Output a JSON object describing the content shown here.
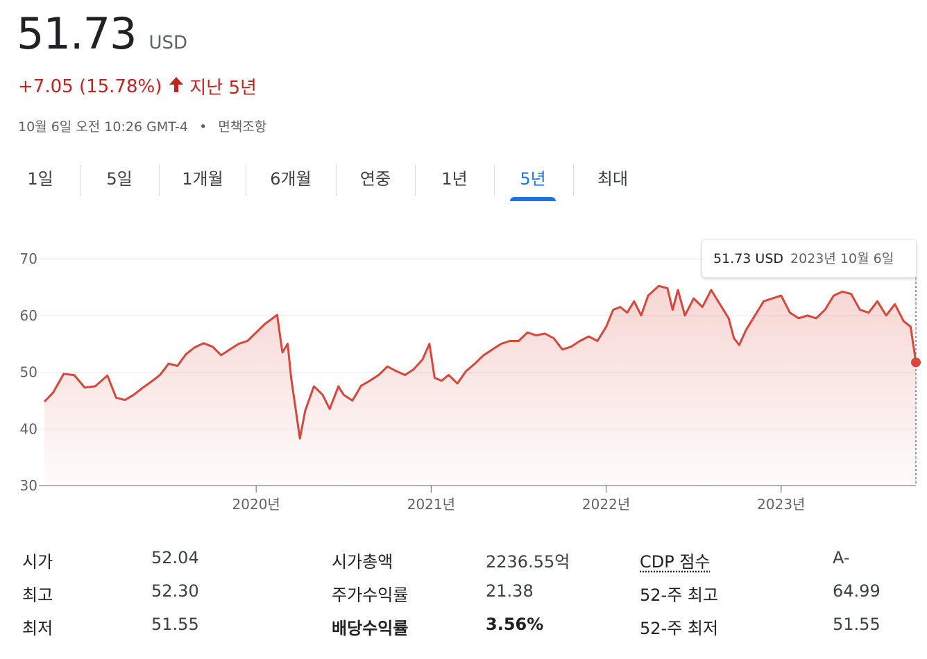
{
  "header": {
    "price": "51.73",
    "currency": "USD",
    "change": "+7.05 (15.78%)",
    "change_period": "지난 5년",
    "timestamp": "10월 6일 오전 10:26 GMT-4",
    "disclaimer": "면책조항",
    "change_color": "#c5221f"
  },
  "tabs": [
    {
      "label": "1일"
    },
    {
      "label": "5일"
    },
    {
      "label": "1개월"
    },
    {
      "label": "6개월"
    },
    {
      "label": "연중"
    },
    {
      "label": "1년"
    },
    {
      "label": "5년",
      "active": true
    },
    {
      "label": "최대"
    }
  ],
  "tooltip": {
    "price": "51.73 USD",
    "date": "2023년 10월 6일"
  },
  "stats": [
    {
      "label": "시가",
      "value": "52.04"
    },
    {
      "label": "최고",
      "value": "52.30"
    },
    {
      "label": "최저",
      "value": "51.55"
    },
    {
      "label": "시가총액",
      "value": "2236.55억"
    },
    {
      "label": "주가수익률",
      "value": "21.38"
    },
    {
      "label": "배당수익률",
      "value": "3.56%"
    },
    {
      "label": "CDP 점수",
      "value": "A-"
    },
    {
      "label": "52-주 최고",
      "value": "64.99"
    },
    {
      "label": "52-주 최저",
      "value": "51.55"
    }
  ],
  "chart_data": {
    "type": "area",
    "color": "#d9463b",
    "ylim": [
      30,
      70
    ],
    "yticks": [
      70,
      60,
      50,
      40,
      30
    ],
    "xlim": [
      2018.79,
      2023.77
    ],
    "xticks": [
      {
        "x": 2020.0,
        "label": "2020년"
      },
      {
        "x": 2021.0,
        "label": "2021년"
      },
      {
        "x": 2022.0,
        "label": "2022년"
      },
      {
        "x": 2023.0,
        "label": "2023년"
      }
    ],
    "grid": true,
    "x": [
      2018.79,
      2018.84,
      2018.9,
      2018.96,
      2019.02,
      2019.08,
      2019.15,
      2019.2,
      2019.25,
      2019.3,
      2019.35,
      2019.4,
      2019.45,
      2019.5,
      2019.55,
      2019.6,
      2019.65,
      2019.7,
      2019.75,
      2019.8,
      2019.85,
      2019.9,
      2019.95,
      2020.05,
      2020.12,
      2020.15,
      2020.18,
      2020.2,
      2020.25,
      2020.28,
      2020.33,
      2020.38,
      2020.42,
      2020.47,
      2020.5,
      2020.55,
      2020.6,
      2020.65,
      2020.7,
      2020.75,
      2020.8,
      2020.85,
      2020.9,
      2020.95,
      2020.99,
      2021.02,
      2021.06,
      2021.1,
      2021.15,
      2021.2,
      2021.25,
      2021.3,
      2021.35,
      2021.4,
      2021.45,
      2021.5,
      2021.55,
      2021.6,
      2021.65,
      2021.7,
      2021.75,
      2021.8,
      2021.85,
      2021.9,
      2021.95,
      2022.0,
      2022.04,
      2022.08,
      2022.12,
      2022.16,
      2022.2,
      2022.24,
      2022.3,
      2022.35,
      2022.38,
      2022.41,
      2022.45,
      2022.5,
      2022.55,
      2022.6,
      2022.65,
      2022.7,
      2022.73,
      2022.76,
      2022.8,
      2022.85,
      2022.9,
      2022.95,
      2023.0,
      2023.05,
      2023.1,
      2023.15,
      2023.2,
      2023.25,
      2023.3,
      2023.35,
      2023.4,
      2023.45,
      2023.5,
      2023.55,
      2023.6,
      2023.65,
      2023.7,
      2023.74,
      2023.77
    ],
    "y": [
      44.8,
      46.4,
      49.7,
      49.5,
      47.3,
      47.5,
      49.4,
      45.5,
      45.1,
      46.0,
      47.2,
      48.3,
      49.5,
      51.5,
      51.1,
      53.2,
      54.4,
      55.1,
      54.5,
      53.0,
      54.0,
      55.0,
      55.5,
      58.5,
      60.1,
      53.5,
      55.0,
      49.0,
      38.3,
      43.2,
      47.5,
      46.0,
      43.5,
      47.5,
      46.0,
      45.0,
      47.6,
      48.5,
      49.5,
      51.0,
      50.2,
      49.5,
      50.5,
      52.2,
      55.0,
      49.0,
      48.5,
      49.5,
      48.0,
      50.2,
      51.5,
      53.0,
      54.0,
      55.0,
      55.5,
      55.5,
      57.0,
      56.5,
      56.8,
      56.0,
      54.0,
      54.5,
      55.5,
      56.3,
      55.5,
      58.0,
      61.0,
      61.5,
      60.5,
      62.5,
      60.0,
      63.5,
      65.2,
      64.8,
      61.0,
      64.5,
      60.0,
      63.0,
      61.5,
      64.5,
      62.0,
      59.5,
      56.0,
      54.8,
      57.5,
      60.0,
      62.5,
      63.0,
      63.5,
      60.5,
      59.5,
      60.0,
      59.5,
      61.0,
      63.5,
      64.2,
      63.8,
      61.0,
      60.5,
      62.5,
      60.0,
      62.0,
      59.0,
      58.0,
      51.73
    ]
  }
}
